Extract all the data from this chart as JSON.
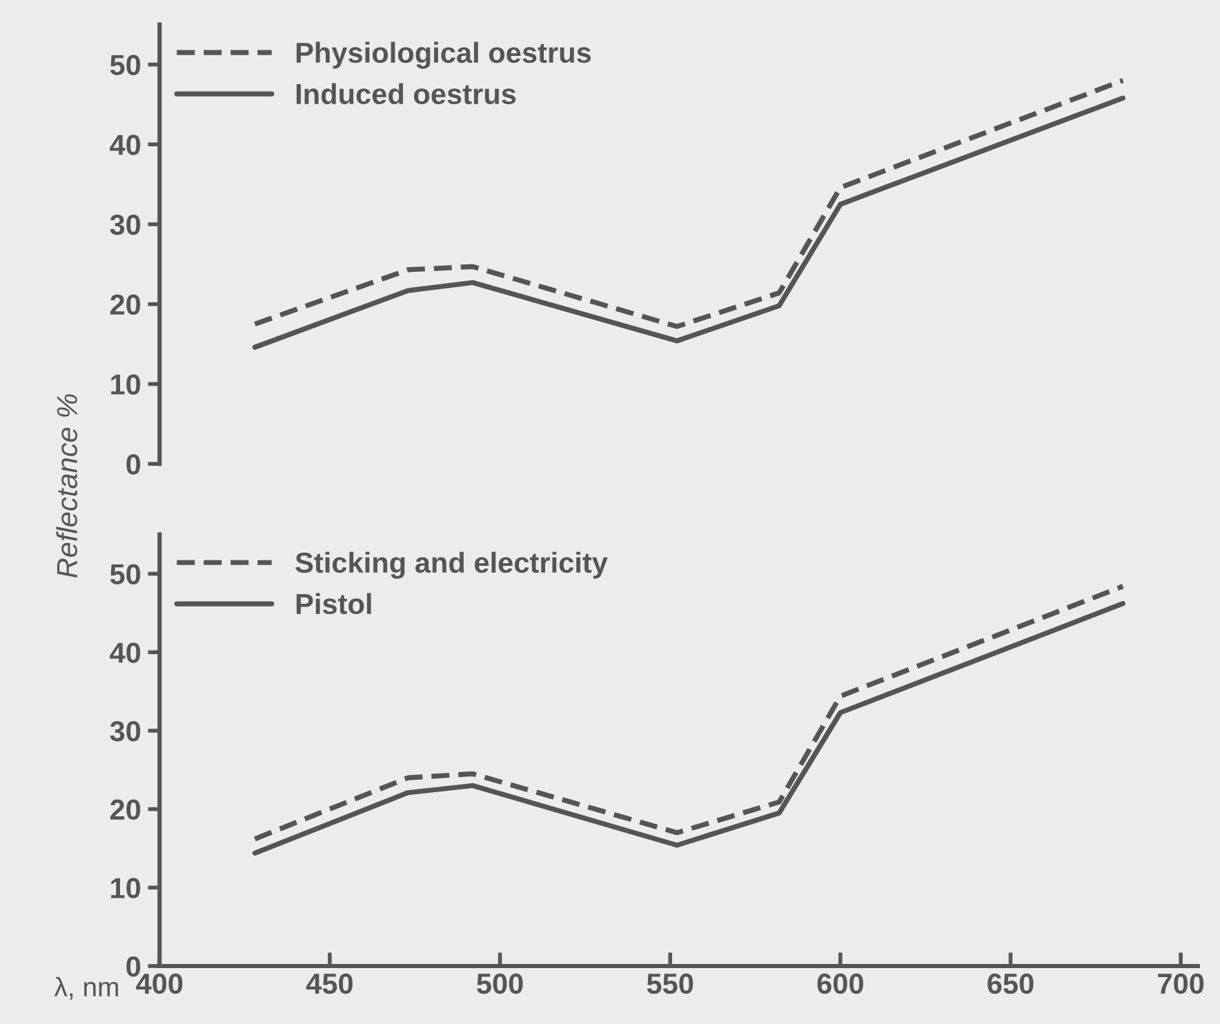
{
  "chart_data": [
    {
      "type": "line",
      "ylabel": "Reflectance %",
      "x": [
        428,
        473,
        492,
        552,
        582,
        600,
        683
      ],
      "series": [
        {
          "name": "Physiological oestrus",
          "color": "#555555",
          "line_style": "dashed",
          "values": [
            17.5,
            24.3,
            24.7,
            17.2,
            21.4,
            34.6,
            48.0
          ]
        },
        {
          "name": "Induced oestrus",
          "color": "#555555",
          "line_style": "solid",
          "values": [
            14.6,
            21.7,
            22.7,
            15.4,
            19.8,
            32.5,
            45.8
          ]
        }
      ],
      "xlim": [
        400,
        700
      ],
      "ylim": [
        0,
        55
      ],
      "xticks": [
        400,
        450,
        500,
        550,
        600,
        650,
        700
      ],
      "yticks": [
        0,
        10,
        20,
        30,
        40,
        50
      ],
      "tick_labels": "y",
      "legend": "top left",
      "grid": false
    },
    {
      "type": "line",
      "xlabel": "λ, nm",
      "x": [
        428,
        473,
        492,
        552,
        582,
        600,
        683
      ],
      "series": [
        {
          "name": "Sticking and electricity",
          "color": "#555555",
          "line_style": "dashed",
          "values": [
            16.2,
            24.0,
            24.5,
            17.0,
            20.9,
            34.4,
            48.4
          ]
        },
        {
          "name": "Pistol",
          "color": "#555555",
          "line_style": "solid",
          "values": [
            14.4,
            22.1,
            23.0,
            15.4,
            19.5,
            32.3,
            46.2
          ]
        }
      ],
      "xlim": [
        400,
        705
      ],
      "ylim": [
        0,
        55
      ],
      "xticks": [
        400,
        450,
        500,
        550,
        600,
        650,
        700
      ],
      "yticks": [
        0,
        10,
        20,
        30,
        40,
        50
      ],
      "legend": "top left",
      "grid": false
    }
  ]
}
